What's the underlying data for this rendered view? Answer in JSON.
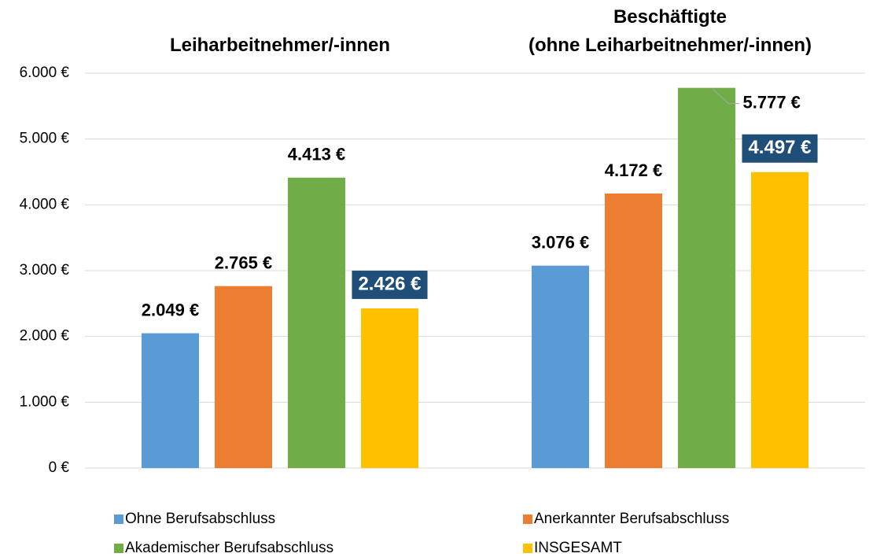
{
  "chart_data": {
    "type": "bar",
    "categories": [
      "Leiharbeitnehmer/-innen",
      "Beschäftigte\n(ohne Leiharbeitnehmer/-innen)"
    ],
    "series": [
      {
        "name": "Ohne Berufsabschluss",
        "color": "#5b9bd5",
        "values": [
          2049,
          3076
        ],
        "value_labels": [
          "2.049 €",
          "3.076 €"
        ]
      },
      {
        "name": "Anerkannter Berufsabschluss",
        "color": "#ed7d31",
        "values": [
          2765,
          4172
        ],
        "value_labels": [
          "2.765 €",
          "4.172 €"
        ]
      },
      {
        "name": "Akademischer Berufsabschluss",
        "color": "#70ad47",
        "values": [
          4413,
          5777
        ],
        "value_labels": [
          "4.413 €",
          "5.777 €"
        ]
      },
      {
        "name": "INSGESAMT",
        "color": "#ffc000",
        "values": [
          2426,
          4497
        ],
        "value_labels": [
          "2.426 €",
          "4.497 €"
        ],
        "label_box": "#1f4e79"
      }
    ],
    "ylim": [
      0,
      6000
    ],
    "yticks": [
      {
        "value": 0,
        "label": "0 €"
      },
      {
        "value": 1000,
        "label": "1.000 €"
      },
      {
        "value": 2000,
        "label": "2.000 €"
      },
      {
        "value": 3000,
        "label": "3.000 €"
      },
      {
        "value": 4000,
        "label": "4.000 €"
      },
      {
        "value": 5000,
        "label": "5.000 €"
      },
      {
        "value": 6000,
        "label": "6.000 €"
      }
    ],
    "grid": true,
    "legend": "bottom"
  }
}
